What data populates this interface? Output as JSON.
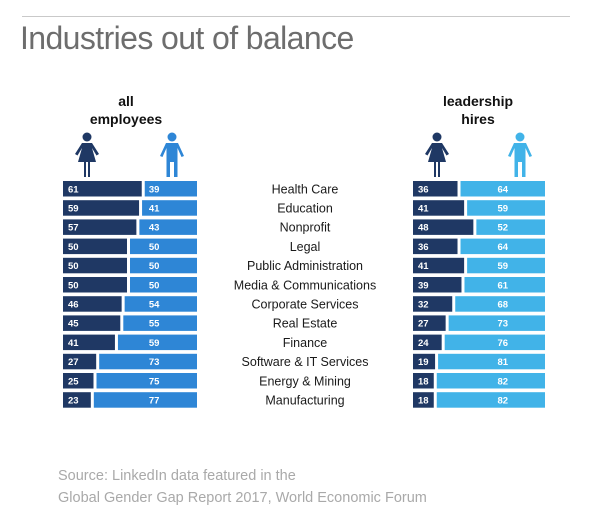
{
  "title": "Industries out of balance",
  "labels": {
    "left_group": [
      "all",
      "employees"
    ],
    "right_group": [
      "leadership",
      "hires"
    ]
  },
  "source_lines": [
    "Source: LinkedIn data featured in the",
    "Global Gender Gap Report 2017, World Economic Forum"
  ],
  "colors": {
    "female_dark": "#1f3864",
    "male_all_employees": "#2e86d6",
    "male_leadership": "#41b3e8",
    "bar_text": "#ffffff"
  },
  "icons": {
    "female": "female-figure-icon",
    "male": "male-figure-icon"
  },
  "chart_data": {
    "type": "bar",
    "categories": [
      "Health Care",
      "Education",
      "Nonprofit",
      "Legal",
      "Public Administration",
      "Media & Communications",
      "Corporate Services",
      "Real Estate",
      "Finance",
      "Software & IT Services",
      "Energy & Mining",
      "Manufacturing"
    ],
    "panels": [
      {
        "name": "all employees",
        "female": [
          61,
          59,
          57,
          50,
          50,
          50,
          46,
          45,
          41,
          27,
          25,
          23
        ],
        "male": [
          39,
          41,
          43,
          50,
          50,
          50,
          54,
          55,
          59,
          73,
          75,
          77
        ]
      },
      {
        "name": "leadership hires",
        "female": [
          36,
          41,
          48,
          36,
          41,
          39,
          32,
          27,
          24,
          19,
          18,
          18
        ],
        "male": [
          64,
          59,
          52,
          64,
          59,
          61,
          68,
          73,
          76,
          81,
          82,
          82
        ]
      }
    ],
    "stacked_to": 100,
    "legend": "icons above panels"
  }
}
